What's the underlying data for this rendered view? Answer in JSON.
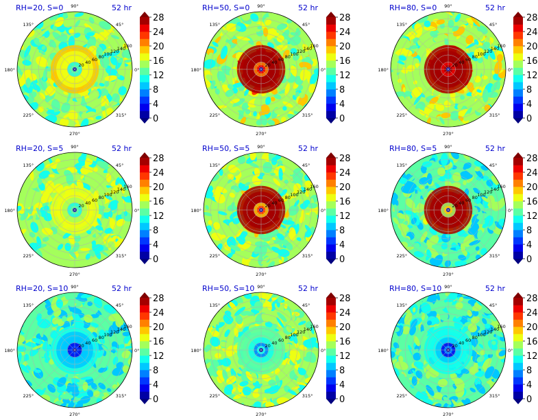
{
  "chart_data": {
    "type": "heatmap",
    "layout": {
      "rows": 3,
      "cols": 3
    },
    "colorbar": {
      "ticks": [
        "0",
        "4",
        "8",
        "12",
        "16",
        "20",
        "24",
        "28"
      ],
      "range": [
        0,
        28
      ],
      "levels": 14,
      "extend": "both",
      "colormap": "jet"
    },
    "angle_labels": [
      "90°",
      "45°",
      "0°",
      "315°",
      "270°",
      "225°",
      "180°",
      "135°"
    ],
    "radial_labels": [
      "20",
      "40",
      "60",
      "80",
      "100",
      "120",
      "140",
      "160"
    ],
    "panels": [
      {
        "label": "RH=20, S=0",
        "time": "52 hr",
        "core": 13,
        "ring": 18,
        "outer": 14
      },
      {
        "label": "RH=50, S=0",
        "time": "52 hr",
        "core": 24,
        "ring": 30,
        "outer": 15
      },
      {
        "label": "RH=80, S=0",
        "time": "52 hr",
        "core": 28,
        "ring": 30,
        "outer": 15
      },
      {
        "label": "RH=20, S=5",
        "time": "52 hr",
        "core": 13,
        "ring": 17,
        "outer": 14
      },
      {
        "label": "RH=50, S=5",
        "time": "52 hr",
        "core": 22,
        "ring": 28,
        "outer": 14
      },
      {
        "label": "RH=80, S=5",
        "time": "52 hr",
        "core": 18,
        "ring": 28,
        "outer": 12
      },
      {
        "label": "RH=20, S=10",
        "time": "52 hr",
        "core": 5,
        "ring": 10,
        "outer": 12
      },
      {
        "label": "RH=50, S=10",
        "time": "52 hr",
        "core": 10,
        "ring": 13,
        "outer": 14
      },
      {
        "label": "RH=80, S=10",
        "time": "52 hr",
        "core": 6,
        "ring": 11,
        "outer": 12
      }
    ]
  }
}
